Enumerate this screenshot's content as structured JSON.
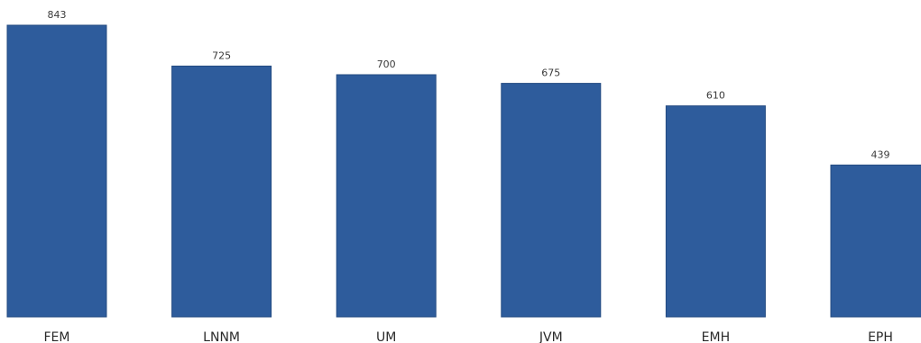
{
  "chart_data": {
    "type": "bar",
    "categories": [
      "FEM",
      "LNNM",
      "UM",
      "JVM",
      "EMH",
      "EPH"
    ],
    "values": [
      843,
      725,
      700,
      675,
      610,
      439
    ],
    "data_labels": [
      "843",
      "725",
      "700",
      "675",
      "610",
      "439"
    ],
    "title": "",
    "xlabel": "",
    "ylabel": "",
    "ylim": [
      0,
      843
    ],
    "grid": false,
    "legend": "none",
    "bar_color": "#2e5c9c",
    "bar_edge_color": "#244b82"
  }
}
